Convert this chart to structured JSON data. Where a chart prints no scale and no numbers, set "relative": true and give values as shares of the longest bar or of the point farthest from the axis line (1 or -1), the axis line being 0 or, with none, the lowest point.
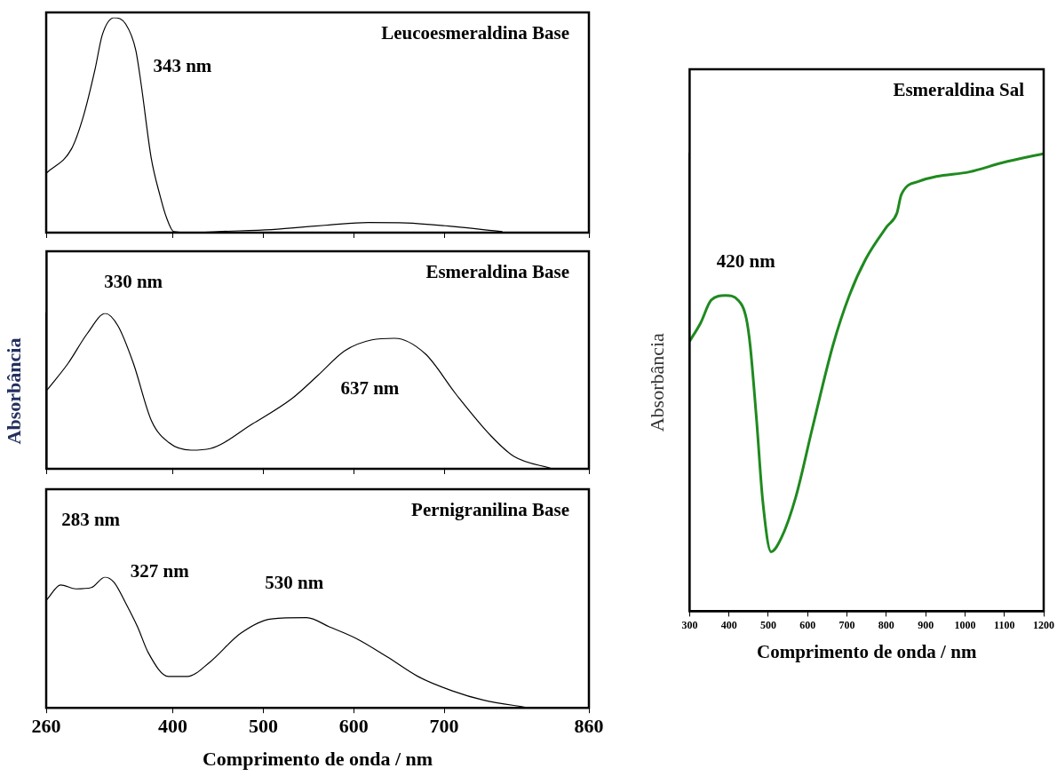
{
  "chart_data": [
    {
      "type": "line",
      "title": "Leucoesmeraldina Base",
      "relative": true,
      "xlim": [
        260,
        860
      ],
      "xticks": [
        260,
        400,
        500,
        600,
        700,
        860
      ],
      "tick_labels": false,
      "series": [
        {
          "color": "#000000",
          "x": [
            261,
            288,
            301,
            314,
            322,
            335,
            348,
            359,
            365,
            376,
            386,
            393,
            401,
            424,
            450,
            509,
            573,
            616,
            658,
            701,
            764
          ],
          "values": [
            0.28,
            0.39,
            0.54,
            0.76,
            0.92,
            1.0,
            0.97,
            0.85,
            0.69,
            0.35,
            0.17,
            0.07,
            0.005,
            0,
            0.005,
            0.014,
            0.036,
            0.047,
            0.045,
            0.032,
            0.005
          ]
        }
      ],
      "annotations": [
        "343 nm"
      ]
    },
    {
      "type": "line",
      "title": "Esmeraldina Base",
      "ylabel": "Absorbância",
      "relative": true,
      "xlim": [
        260,
        860
      ],
      "xticks": [
        260,
        400,
        500,
        600,
        700,
        860
      ],
      "tick_labels": false,
      "series": [
        {
          "color": "#000000",
          "x": [
            261,
            284,
            305,
            325,
            339,
            356,
            376,
            395,
            420,
            441,
            488,
            531,
            560,
            590,
            620,
            645,
            679,
            713,
            752,
            777,
            820
          ],
          "values": [
            0.51,
            0.68,
            0.87,
            1.0,
            0.92,
            0.68,
            0.31,
            0.17,
            0.12,
            0.13,
            0.29,
            0.45,
            0.6,
            0.76,
            0.83,
            0.84,
            0.74,
            0.48,
            0.21,
            0.08,
            0
          ]
        }
      ],
      "annotations": [
        "330 nm",
        "637 nm"
      ]
    },
    {
      "type": "line",
      "title": "Pernigranilina Base",
      "xlabel": "Comprimento de onda / nm",
      "relative": true,
      "xlim": [
        260,
        860
      ],
      "xticks": [
        260,
        400,
        500,
        600,
        700,
        860
      ],
      "tick_labels": "x",
      "series": [
        {
          "color": "#000000",
          "x": [
            261,
            276,
            293,
            310,
            325,
            335,
            348,
            361,
            373,
            395,
            416,
            441,
            475,
            509,
            548,
            573,
            603,
            637,
            671,
            709,
            743,
            794
          ],
          "values": [
            0.83,
            0.94,
            0.91,
            0.92,
            1.0,
            0.96,
            0.8,
            0.62,
            0.42,
            0.24,
            0.24,
            0.35,
            0.57,
            0.68,
            0.69,
            0.62,
            0.53,
            0.39,
            0.24,
            0.13,
            0.06,
            0
          ]
        }
      ],
      "annotations": [
        "283 nm",
        "327 nm",
        "530 nm"
      ]
    },
    {
      "type": "line",
      "title": "Esmeraldina Sal",
      "xlabel": "Comprimento de onda / nm",
      "ylabel": "Absorbância",
      "relative": true,
      "xlim": [
        300,
        1200
      ],
      "xticks": [
        300,
        400,
        500,
        600,
        700,
        800,
        900,
        1000,
        1100,
        1200
      ],
      "tick_labels": "x",
      "series": [
        {
          "color": "#1f8a1f",
          "x": [
            300,
            328,
            355,
            391,
            423,
            444,
            454,
            470,
            486,
            507,
            533,
            570,
            612,
            664,
            706,
            748,
            801,
            827,
            838,
            885,
            927,
            1011,
            1095,
            1200
          ],
          "values": [
            0.59,
            0.63,
            0.68,
            0.69,
            0.68,
            0.64,
            0.58,
            0.42,
            0.24,
            0.13,
            0.16,
            0.25,
            0.4,
            0.58,
            0.69,
            0.77,
            0.84,
            0.87,
            0.91,
            0.94,
            0.95,
            0.96,
            0.98,
            1.0
          ]
        }
      ],
      "annotations": [
        "420 nm"
      ]
    }
  ]
}
